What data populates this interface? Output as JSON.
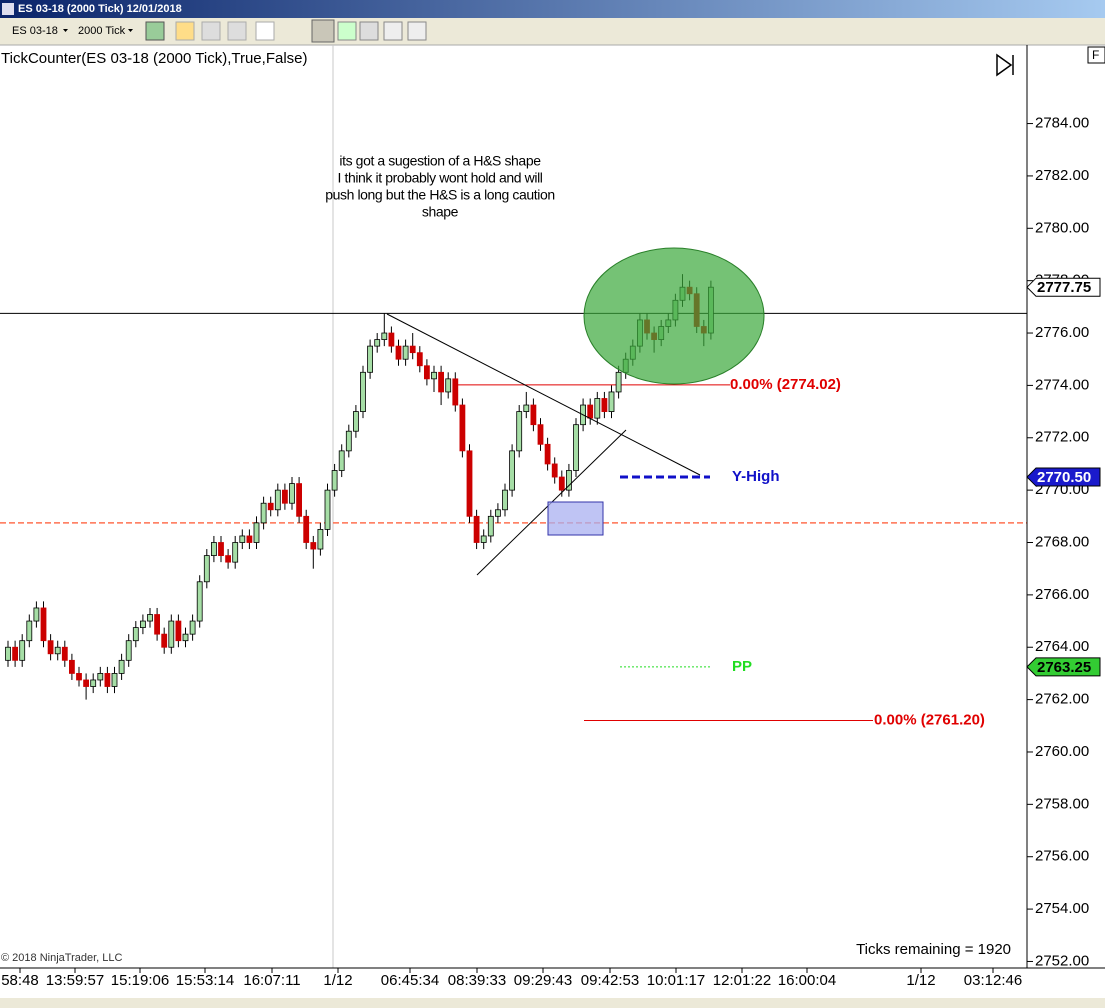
{
  "window": {
    "title": "ES 03-18 (2000 Tick) 12/01/2018",
    "instrument": "ES 03-18",
    "interval": "2000 Tick",
    "button": "F"
  },
  "chart_data": {
    "type": "candlestick",
    "title": "TickCounter(ES 03-18 (2000 Tick),True,False)",
    "annotation": [
      "its got a sugestion of a H&S shape",
      "I think it probably wont hold and will",
      "push long but the H&S is a long caution",
      "shape"
    ],
    "copyright": "© 2018 NinjaTrader, LLC",
    "ticks_remaining": "Ticks remaining = 1920",
    "x_labels": [
      "58:48",
      "13:59:57",
      "15:19:06",
      "15:53:14",
      "16:07:11",
      "1/12",
      "06:45:34",
      "08:39:33",
      "09:29:43",
      "09:42:53",
      "10:01:17",
      "12:01:22",
      "16:00:04",
      "1/12",
      "03:12:46"
    ],
    "up_color": "#a6dea6",
    "down_color": "#cc0000",
    "open": [
      2763.5,
      2764.0,
      2763.5,
      2764.25,
      2765.0,
      2765.5,
      2764.25,
      2763.75,
      2764.0,
      2763.5,
      2763.0,
      2762.75,
      2762.5,
      2762.75,
      2763.0,
      2762.5,
      2763.0,
      2763.5,
      2764.25,
      2764.75,
      2765.0,
      2765.25,
      2764.5,
      2764.0,
      2765.0,
      2764.25,
      2764.5,
      2765.0,
      2766.5,
      2767.5,
      2768.0,
      2767.5,
      2767.25,
      2768.0,
      2768.25,
      2768.0,
      2768.75,
      2769.5,
      2769.25,
      2770.0,
      2769.5,
      2770.25,
      2769.0,
      2768.0,
      2767.75,
      2768.5,
      2770.0,
      2770.75,
      2771.5,
      2772.25,
      2773.0,
      2774.5,
      2775.5,
      2775.75,
      2776.0,
      2775.5,
      2775.0,
      2775.5,
      2775.25,
      2774.75,
      2774.25,
      2774.5,
      2773.75,
      2774.25,
      2773.25,
      2771.5,
      2769.0,
      2768.0,
      2768.25,
      2769.0,
      2769.25,
      2770.0,
      2771.5,
      2773.0,
      2773.25,
      2772.5,
      2771.75,
      2771.0,
      2770.5,
      2770.0,
      2770.75,
      2772.5,
      2773.25,
      2772.75,
      2773.5,
      2773.0,
      2773.75,
      2774.5,
      2775.0,
      2775.5,
      2776.5,
      2776.0,
      2775.75,
      2776.25,
      2776.5,
      2777.25,
      2777.75,
      2777.5,
      2776.25,
      2776.0
    ],
    "high": [
      2764.25,
      2764.25,
      2764.5,
      2765.25,
      2765.75,
      2765.75,
      2764.5,
      2764.25,
      2764.25,
      2763.75,
      2763.25,
      2763.0,
      2763.0,
      2763.25,
      2763.25,
      2763.25,
      2763.75,
      2764.5,
      2765.0,
      2765.25,
      2765.5,
      2765.5,
      2764.75,
      2765.25,
      2765.25,
      2764.75,
      2765.25,
      2766.75,
      2767.75,
      2768.25,
      2768.25,
      2767.75,
      2768.25,
      2768.5,
      2768.5,
      2769.0,
      2769.75,
      2769.75,
      2770.25,
      2770.25,
      2770.5,
      2770.5,
      2769.25,
      2768.25,
      2768.75,
      2770.25,
      2771.0,
      2771.75,
      2772.5,
      2773.25,
      2774.75,
      2775.75,
      2776.0,
      2776.75,
      2776.25,
      2775.75,
      2775.75,
      2776.0,
      2775.5,
      2775.0,
      2774.75,
      2774.75,
      2774.5,
      2774.5,
      2773.5,
      2771.75,
      2769.25,
      2768.5,
      2769.25,
      2769.5,
      2770.25,
      2771.75,
      2773.25,
      2773.75,
      2773.5,
      2772.75,
      2772.0,
      2771.25,
      2770.75,
      2771.0,
      2772.75,
      2773.5,
      2773.5,
      2773.75,
      2773.75,
      2774.0,
      2774.75,
      2775.25,
      2775.75,
      2776.75,
      2776.75,
      2776.25,
      2776.5,
      2776.75,
      2777.5,
      2778.25,
      2778.0,
      2777.75,
      2776.5,
      2778.0
    ],
    "low": [
      2763.25,
      2763.25,
      2763.25,
      2764.0,
      2764.75,
      2764.0,
      2763.5,
      2763.5,
      2763.25,
      2762.75,
      2762.5,
      2762.0,
      2762.25,
      2762.5,
      2762.25,
      2762.25,
      2762.75,
      2763.25,
      2764.0,
      2764.5,
      2764.75,
      2764.25,
      2763.75,
      2763.75,
      2764.0,
      2764.0,
      2764.25,
      2764.75,
      2766.25,
      2767.25,
      2767.25,
      2767.0,
      2767.0,
      2767.75,
      2767.75,
      2767.75,
      2768.5,
      2769.0,
      2769.0,
      2769.25,
      2769.25,
      2768.75,
      2767.75,
      2767.0,
      2767.5,
      2768.25,
      2769.75,
      2770.5,
      2771.25,
      2772.0,
      2772.75,
      2774.25,
      2775.25,
      2775.5,
      2775.25,
      2774.75,
      2774.75,
      2775.0,
      2774.5,
      2774.0,
      2773.75,
      2773.25,
      2773.5,
      2773.0,
      2771.25,
      2768.75,
      2767.75,
      2767.75,
      2768.0,
      2768.75,
      2769.0,
      2769.75,
      2771.25,
      2772.75,
      2772.25,
      2771.5,
      2770.75,
      2770.25,
      2769.75,
      2769.75,
      2770.5,
      2772.25,
      2772.5,
      2772.5,
      2772.75,
      2772.75,
      2773.5,
      2774.25,
      2774.75,
      2775.25,
      2775.75,
      2775.25,
      2775.5,
      2776.0,
      2776.25,
      2777.0,
      2777.25,
      2776.0,
      2775.5,
      2775.75
    ],
    "close": [
      2764.0,
      2763.5,
      2764.25,
      2765.0,
      2765.5,
      2764.25,
      2763.75,
      2764.0,
      2763.5,
      2763.0,
      2762.75,
      2762.5,
      2762.75,
      2763.0,
      2762.5,
      2763.0,
      2763.5,
      2764.25,
      2764.75,
      2765.0,
      2765.25,
      2764.5,
      2764.0,
      2765.0,
      2764.25,
      2764.5,
      2765.0,
      2766.5,
      2767.5,
      2768.0,
      2767.5,
      2767.25,
      2768.0,
      2768.25,
      2768.0,
      2768.75,
      2769.5,
      2769.25,
      2770.0,
      2769.5,
      2770.25,
      2769.0,
      2768.0,
      2767.75,
      2768.5,
      2770.0,
      2770.75,
      2771.5,
      2772.25,
      2773.0,
      2774.5,
      2775.5,
      2775.75,
      2776.0,
      2775.5,
      2775.0,
      2775.5,
      2775.25,
      2774.75,
      2774.25,
      2774.5,
      2773.75,
      2774.25,
      2773.25,
      2771.5,
      2769.0,
      2768.0,
      2768.25,
      2769.0,
      2769.25,
      2770.0,
      2771.5,
      2773.0,
      2773.25,
      2772.5,
      2771.75,
      2771.0,
      2770.5,
      2770.0,
      2770.75,
      2772.5,
      2773.25,
      2772.75,
      2773.5,
      2773.0,
      2773.75,
      2774.5,
      2775.0,
      2775.5,
      2776.5,
      2776.0,
      2775.75,
      2776.25,
      2776.5,
      2777.25,
      2777.75,
      2777.5,
      2776.25,
      2776.0,
      2777.75
    ],
    "ylim": [
      2751.75,
      2787
    ],
    "yticks": [
      {
        "value": 2752,
        "label": "2752.00"
      },
      {
        "value": 2754,
        "label": "2754.00"
      },
      {
        "value": 2756,
        "label": "2756.00"
      },
      {
        "value": 2758,
        "label": "2758.00"
      },
      {
        "value": 2760,
        "label": "2760.00"
      },
      {
        "value": 2762,
        "label": "2762.00"
      },
      {
        "value": 2764,
        "label": "2764.00"
      },
      {
        "value": 2766,
        "label": "2766.00"
      },
      {
        "value": 2768,
        "label": "2768.00"
      },
      {
        "value": 2770,
        "label": "2770.00"
      },
      {
        "value": 2772,
        "label": "2772.00"
      },
      {
        "value": 2774,
        "label": "2774.00"
      },
      {
        "value": 2776,
        "label": "2776.00"
      },
      {
        "value": 2778,
        "label": "2778.00"
      },
      {
        "value": 2780,
        "label": "2780.00"
      },
      {
        "value": 2782,
        "label": "2782.00"
      },
      {
        "value": 2784,
        "label": "2784.00"
      }
    ],
    "hlines": [
      {
        "value": 2776.75,
        "color": "#000000",
        "style": "solid"
      },
      {
        "value": 2768.75,
        "color": "#ff7050",
        "style": "dashed"
      }
    ],
    "levels": [
      {
        "name": "0.00% (2774.02)",
        "value": 2774.02,
        "color": "#e00000",
        "style": "solid"
      },
      {
        "name": "0.00% (2761.20)",
        "value": 2761.2,
        "color": "#e00000",
        "style": "solid"
      },
      {
        "name": "Y-High",
        "value": 2770.5,
        "color": "#1010c8",
        "style": "dashed"
      },
      {
        "name": "PP",
        "value": 2763.25,
        "color": "#22dd22",
        "style": "dotted"
      }
    ],
    "price_markers": [
      {
        "value": 2777.75,
        "label": "2777.75",
        "fill": "#ffffff",
        "text_color": "#000000"
      },
      {
        "value": 2770.5,
        "label": "2770.50",
        "fill": "#1a1acc",
        "text_color": "#ffffff"
      },
      {
        "value": 2763.25,
        "label": "2763.25",
        "fill": "#33cc33",
        "text_color": "#000000"
      }
    ]
  }
}
